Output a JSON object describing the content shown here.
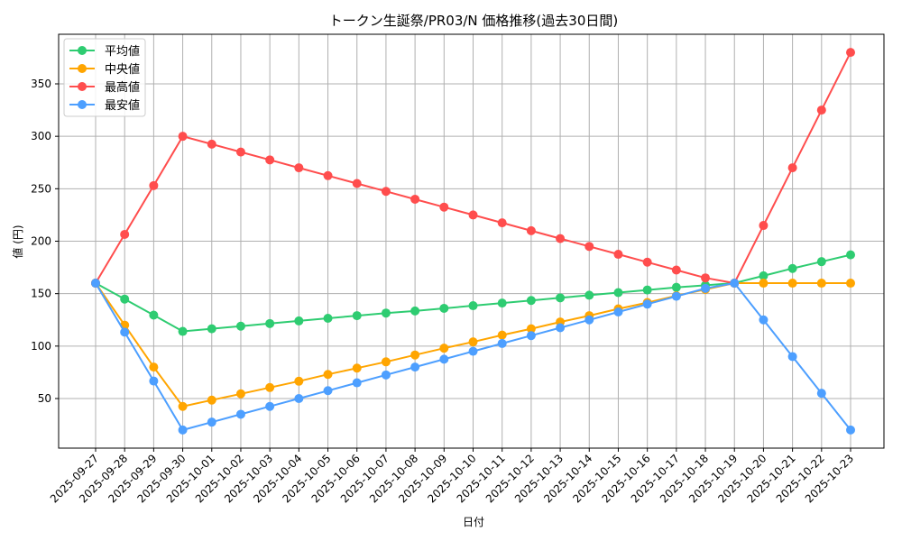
{
  "chart_data": {
    "type": "line",
    "title": "トークン生誕祭/PR03/N 価格推移(過去30日間)",
    "xlabel": "日付",
    "ylabel": "値 (円)",
    "ylim": [
      5,
      395
    ],
    "yticks": [
      50,
      100,
      150,
      200,
      250,
      300,
      350
    ],
    "grid": true,
    "legend_position": "upper left",
    "categories": [
      "2025-09-27",
      "2025-09-28",
      "2025-09-29",
      "2025-09-30",
      "2025-10-01",
      "2025-10-02",
      "2025-10-03",
      "2025-10-04",
      "2025-10-05",
      "2025-10-06",
      "2025-10-07",
      "2025-10-08",
      "2025-10-09",
      "2025-10-10",
      "2025-10-11",
      "2025-10-12",
      "2025-10-13",
      "2025-10-14",
      "2025-10-15",
      "2025-10-16",
      "2025-10-17",
      "2025-10-18",
      "2025-10-19",
      "2025-10-20",
      "2025-10-21",
      "2025-10-22",
      "2025-10-23"
    ],
    "series": [
      {
        "name": "平均値",
        "color": "#2ecc71",
        "values": [
          160,
          144.8,
          129.5,
          114,
          116.5,
          119,
          121.5,
          124,
          126.5,
          129,
          131.5,
          133.5,
          136,
          138.5,
          141,
          143.5,
          146,
          148.5,
          151,
          153.5,
          156,
          158,
          160,
          167,
          174,
          180.5,
          187
        ]
      },
      {
        "name": "中央値",
        "color": "#ffa500",
        "values": [
          160,
          120,
          80,
          42.5,
          48.5,
          54.5,
          60.5,
          66.5,
          73,
          79,
          85,
          91.5,
          98,
          104,
          110.5,
          116.5,
          123,
          129,
          135.5,
          141.5,
          148,
          154,
          160,
          160,
          160,
          160,
          160
        ]
      },
      {
        "name": "最高値",
        "color": "#ff4d4d",
        "values": [
          160,
          206.5,
          253,
          300,
          292.5,
          285,
          277.5,
          270,
          262.5,
          255,
          247.5,
          240,
          232.5,
          225,
          217.5,
          210,
          202.5,
          195,
          187.5,
          180,
          172.5,
          165,
          160,
          215,
          270,
          325,
          380
        ]
      },
      {
        "name": "最安値",
        "color": "#4d9fff",
        "values": [
          160,
          113.3,
          66.7,
          20,
          27.5,
          35,
          42.5,
          50,
          57.5,
          65,
          72.5,
          80,
          87.5,
          95,
          102.5,
          110,
          117.5,
          125,
          132.5,
          140,
          147.5,
          155,
          160,
          125,
          90,
          55,
          20
        ]
      }
    ]
  }
}
